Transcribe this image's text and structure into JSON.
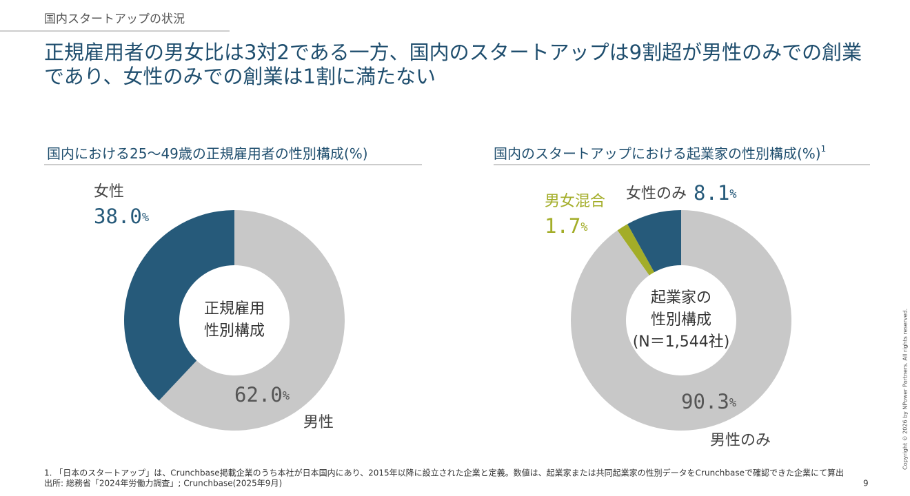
{
  "header": "国内スタートアップの状況",
  "headline": [
    "正規雇用者の男女比は3対2である一方、国内のスタートアップは9割超が男性のみでの創業",
    "であり、女性のみでの創業は1割に満たない"
  ],
  "chart_data": [
    {
      "type": "pie",
      "title": "国内における25～49歳の正規雇用者の性別構成(%)",
      "center_label": [
        "正規雇用",
        "性別構成"
      ],
      "categories": [
        "男性",
        "女性"
      ],
      "values": [
        62.0,
        38.0
      ],
      "value_labels": [
        "62.0",
        "38.0"
      ],
      "unit": "%",
      "colors": [
        "#c8c8c8",
        "#265a7a"
      ]
    },
    {
      "type": "pie",
      "title": "国内のスタートアップにおける起業家の性別構成(%)",
      "title_note": "1",
      "center_label": [
        "起業家の",
        "性別構成",
        "(N＝1,544社)"
      ],
      "categories": [
        "男性のみ",
        "男女混合",
        "女性のみ"
      ],
      "values": [
        90.3,
        1.7,
        8.1
      ],
      "value_labels": [
        "90.3",
        "1.7",
        "8.1"
      ],
      "unit": "%",
      "colors": [
        "#c8c8c8",
        "#a3ad28",
        "#265a7a"
      ]
    }
  ],
  "footnotes": [
    "1. 「日本のスタートアップ」は、Crunchbase掲載企業のうち本社が日本国内にあり、2015年以降に設立された企業と定義。数値は、起業家または共同起業家の性別データをCrunchbaseで確認できた企業にて算出",
    "出所: 総務省「2024年労働力調査」; Crunchbase(2025年9月)"
  ],
  "page_number": "9",
  "copyright": "Copyright © 2026 by NPower Partners. All rights reserved."
}
